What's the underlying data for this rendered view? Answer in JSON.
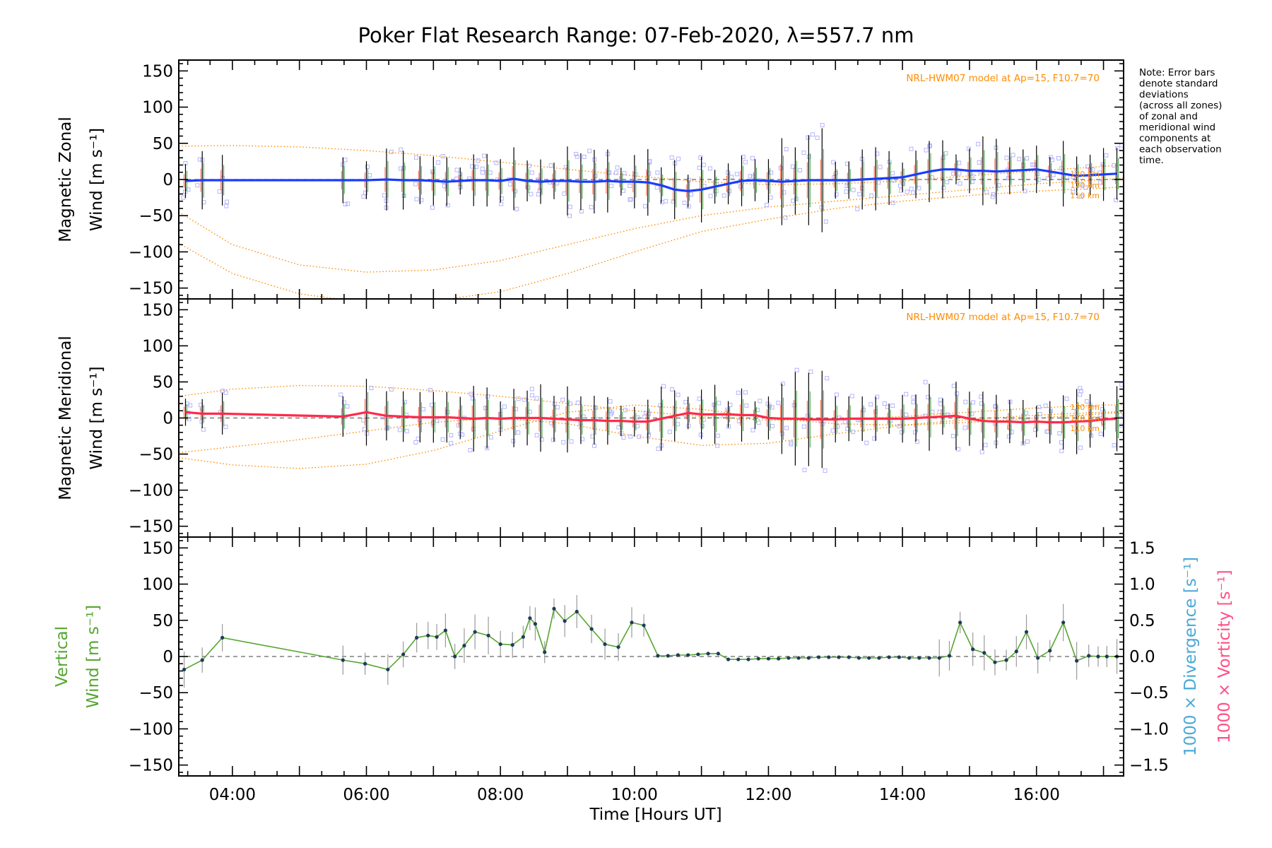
{
  "title": "Poker Flat Research Range: 07-Feb-2020, λ=557.7 nm",
  "note": [
    "Note: Error bars",
    "denote standard",
    "deviations",
    "(across all zones)",
    "of zonal and",
    "meridional wind",
    "components at",
    "each observation",
    "time."
  ],
  "colors": {
    "zonal": "#1a3cff",
    "meridional": "#ff2a4a",
    "vertical": "#55a630",
    "divergence": "#4aa8d8",
    "vorticity": "#ff4f86",
    "model": "#ff8c00",
    "scatter": "#b4b4ff",
    "errbar": "#000000"
  },
  "chart_data": [
    {
      "type": "line",
      "panel": "zonal",
      "ylabel_line1": "Magnetic Zonal",
      "ylabel_line2": "Wind [m s⁻¹]",
      "ylim": [
        -165,
        165
      ],
      "yticks": [
        -150,
        -100,
        -50,
        0,
        50,
        100,
        150
      ],
      "model_label": "NRL-HWM07 model at Ap=15, F10.7=70",
      "model_km_labels": [
        "130 km",
        "120 km",
        "110 km"
      ],
      "series": [
        {
          "x": [
            3.3,
            3.55,
            3.85,
            5.65,
            6.0,
            6.3,
            6.55,
            6.8,
            7.0,
            7.2,
            7.4,
            7.6,
            7.8,
            8.0,
            8.2,
            8.4,
            8.6,
            8.8,
            9.0,
            9.2,
            9.4,
            9.6,
            9.8,
            10.0,
            10.2,
            10.4,
            10.6,
            10.8,
            11.0,
            11.2,
            11.4,
            11.6,
            11.8,
            12.0,
            12.2,
            12.4,
            12.6,
            12.8,
            13.0,
            13.2,
            13.4,
            13.6,
            13.8,
            14.0,
            14.2,
            14.4,
            14.6,
            14.8,
            15.0,
            15.2,
            15.4,
            15.6,
            15.8,
            16.0,
            16.2,
            16.4,
            16.6,
            16.8,
            17.0,
            17.2
          ],
          "values": [
            -2,
            -1,
            -1,
            -1,
            -1,
            0,
            -1,
            -1,
            -2,
            -3,
            -2,
            -1,
            -1,
            -2,
            1,
            -2,
            -3,
            -2,
            -2,
            -3,
            -3,
            -2,
            -3,
            -3,
            -4,
            -8,
            -14,
            -16,
            -14,
            -10,
            -6,
            -2,
            -1,
            -2,
            -3,
            -2,
            -1,
            -1,
            -1,
            -1,
            0,
            1,
            2,
            3,
            7,
            11,
            14,
            14,
            12,
            12,
            11,
            12,
            13,
            14,
            11,
            8,
            5,
            6,
            7,
            8
          ]
        }
      ],
      "model_curves": [
        {
          "x": [
            3.2,
            4.0,
            5.0,
            6.0,
            7.0,
            8.0,
            9.0,
            10.0,
            11.0,
            12.0,
            13.0,
            14.0,
            15.0,
            16.0,
            17.0,
            17.3
          ],
          "values": [
            46,
            47,
            45,
            40,
            33,
            24,
            14,
            5,
            -3,
            -7,
            -6,
            -2,
            5,
            12,
            18,
            20
          ]
        },
        {
          "x": [
            3.2,
            4.0,
            5.0,
            6.0,
            7.0,
            8.0,
            9.0,
            10.0,
            11.0,
            12.0,
            13.0,
            14.0,
            15.0,
            16.0,
            17.0,
            17.3
          ],
          "values": [
            -45,
            -90,
            -118,
            -128,
            -125,
            -112,
            -90,
            -68,
            -50,
            -38,
            -30,
            -22,
            -14,
            -6,
            0,
            2
          ]
        },
        {
          "x": [
            3.2,
            4.0,
            5.0,
            6.0,
            7.0,
            8.0,
            9.0,
            10.0,
            11.0,
            12.0,
            13.0,
            14.0,
            15.0,
            16.0,
            17.0,
            17.3
          ],
          "values": [
            -88,
            -130,
            -158,
            -170,
            -168,
            -155,
            -130,
            -100,
            -72,
            -55,
            -40,
            -30,
            -22,
            -16,
            -12,
            -10
          ]
        }
      ]
    },
    {
      "type": "line",
      "panel": "meridional",
      "ylabel_line1": "Magnetic Meridional",
      "ylabel_line2": "Wind [m s⁻¹]",
      "ylim": [
        -165,
        165
      ],
      "yticks": [
        -150,
        -100,
        -50,
        0,
        50,
        100,
        150
      ],
      "model_label": "NRL-HWM07 model at Ap=15, F10.7=70",
      "model_km_labels": [
        "130 km",
        "120 km",
        "110 km"
      ],
      "series": [
        {
          "x": [
            3.3,
            3.55,
            3.85,
            5.65,
            6.0,
            6.3,
            6.55,
            6.8,
            7.0,
            7.2,
            7.4,
            7.6,
            7.8,
            8.0,
            8.2,
            8.4,
            8.6,
            8.8,
            9.0,
            9.2,
            9.4,
            9.6,
            9.8,
            10.0,
            10.2,
            10.4,
            10.6,
            10.8,
            11.0,
            11.2,
            11.4,
            11.6,
            11.8,
            12.0,
            12.2,
            12.4,
            12.6,
            12.8,
            13.0,
            13.2,
            13.4,
            13.6,
            13.8,
            14.0,
            14.2,
            14.4,
            14.6,
            14.8,
            15.0,
            15.2,
            15.4,
            15.6,
            15.8,
            16.0,
            16.2,
            16.4,
            16.6,
            16.8,
            17.0,
            17.2
          ],
          "values": [
            8,
            6,
            6,
            2,
            8,
            3,
            2,
            1,
            1,
            1,
            0,
            -1,
            0,
            -1,
            0,
            0,
            0,
            -1,
            -2,
            -3,
            -3,
            -4,
            -4,
            -5,
            -5,
            -1,
            3,
            7,
            5,
            5,
            5,
            4,
            4,
            0,
            -1,
            -1,
            -2,
            -2,
            -2,
            -1,
            -1,
            -1,
            -1,
            -1,
            0,
            1,
            2,
            3,
            -1,
            -4,
            -5,
            -5,
            -6,
            -5,
            -6,
            -6,
            -5,
            -4,
            -2,
            -1
          ]
        }
      ],
      "model_curves": [
        {
          "x": [
            3.2,
            4.0,
            5.0,
            6.0,
            7.0,
            8.0,
            9.0,
            10.0,
            11.0,
            12.0,
            13.0,
            14.0,
            15.0,
            16.0,
            17.0,
            17.3
          ],
          "values": [
            30,
            40,
            45,
            44,
            38,
            30,
            20,
            10,
            2,
            -3,
            -2,
            2,
            8,
            14,
            18,
            18
          ]
        },
        {
          "x": [
            3.2,
            4.0,
            5.0,
            6.0,
            7.0,
            8.0,
            9.0,
            10.0,
            11.0,
            12.0,
            13.0,
            14.0,
            15.0,
            16.0,
            17.0,
            17.3
          ],
          "values": [
            -55,
            -65,
            -70,
            -64,
            -45,
            -18,
            8,
            18,
            12,
            0,
            -8,
            -10,
            -6,
            0,
            6,
            8
          ]
        },
        {
          "x": [
            3.2,
            4.0,
            5.0,
            6.0,
            7.0,
            8.0,
            9.0,
            10.0,
            11.0,
            12.0,
            13.0,
            14.0,
            15.0,
            16.0,
            17.0,
            17.3
          ],
          "values": [
            -48,
            -40,
            -30,
            -18,
            -6,
            0,
            -8,
            -25,
            -38,
            -35,
            -22,
            -10,
            -2,
            4,
            8,
            9
          ]
        }
      ]
    },
    {
      "type": "line",
      "panel": "vertical",
      "ylabel_line1": "Vertical",
      "ylabel_line2": "Wind [m s⁻¹]",
      "ylim": [
        -165,
        165
      ],
      "yticks": [
        -150,
        -100,
        -50,
        0,
        50,
        100,
        150
      ],
      "y2lim": [
        -1.65,
        1.65
      ],
      "y2ticks": [
        -1.5,
        -1.0,
        -0.5,
        0.0,
        0.5,
        1.0,
        1.5
      ],
      "y2label_divergence": "1000 × Divergence [s⁻¹]",
      "y2label_vorticity": "1000 × Vorticity [s⁻¹]",
      "xlabel": "Time [Hours UT]",
      "xlim": [
        3.2,
        17.3
      ],
      "xticks": [
        "04:00",
        "06:00",
        "08:00",
        "10:00",
        "12:00",
        "14:00",
        "16:00"
      ],
      "xtick_hours": [
        4,
        6,
        8,
        10,
        12,
        14,
        16
      ],
      "series": [
        {
          "x": [
            3.28,
            3.55,
            3.85,
            5.65,
            5.98,
            6.32,
            6.55,
            6.75,
            6.92,
            7.05,
            7.18,
            7.32,
            7.46,
            7.62,
            7.82,
            8.0,
            8.18,
            8.34,
            8.44,
            8.52,
            8.66,
            8.8,
            8.96,
            9.14,
            9.36,
            9.56,
            9.76,
            9.96,
            10.14,
            10.35,
            10.5,
            10.65,
            10.8,
            10.95,
            11.1,
            11.25,
            11.4,
            11.55,
            11.7,
            11.85,
            12.0,
            12.15,
            12.3,
            12.45,
            12.6,
            12.75,
            12.9,
            13.05,
            13.2,
            13.35,
            13.5,
            13.65,
            13.8,
            13.95,
            14.1,
            14.25,
            14.4,
            14.55,
            14.7,
            14.86,
            15.05,
            15.22,
            15.38,
            15.55,
            15.7,
            15.85,
            16.02,
            16.2,
            16.4,
            16.6,
            16.78,
            16.92,
            17.05,
            17.2
          ],
          "values": [
            -18,
            -5,
            26,
            -5,
            -10,
            -18,
            3,
            26,
            29,
            27,
            36,
            0,
            15,
            34,
            29,
            17,
            16,
            27,
            53,
            45,
            6,
            66,
            49,
            62,
            38,
            17,
            13,
            47,
            43,
            1,
            1,
            2,
            2,
            3,
            4,
            4,
            -4,
            -4,
            -4,
            -3,
            -3,
            -3,
            -2,
            -2,
            -2,
            -1,
            -1,
            -1,
            -1,
            -2,
            -2,
            -2,
            -1,
            -1,
            -2,
            -2,
            -2,
            -2,
            1,
            47,
            10,
            5,
            -8,
            -5,
            7,
            34,
            -2,
            8,
            47,
            -6,
            1,
            0,
            0,
            0
          ]
        }
      ]
    }
  ]
}
